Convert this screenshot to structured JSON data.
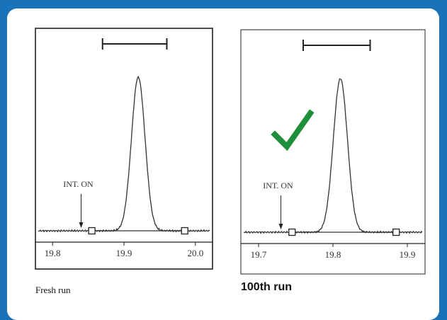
{
  "chart_data": [
    {
      "type": "line",
      "caption": "Fresh run",
      "xlim": [
        19.78,
        20.02
      ],
      "xticks": [
        19.8,
        19.9,
        20.0
      ],
      "xtick_labels": [
        "19.8",
        "19.9",
        "20.0"
      ],
      "peak": {
        "center": 19.92,
        "sigma": 0.0095,
        "relative_height": 0.92
      },
      "annotations": {
        "width_bar": [
          19.87,
          19.96
        ],
        "int_on_label": "INT. ON",
        "int_on_x": 19.84,
        "integration_markers": [
          19.855,
          19.985
        ]
      },
      "checkmark": false
    },
    {
      "type": "line",
      "caption": "100th run",
      "xlim": [
        19.68,
        19.92
      ],
      "xticks": [
        19.7,
        19.8,
        19.9
      ],
      "xtick_labels": [
        "19.7",
        "19.8",
        "19.9"
      ],
      "peak": {
        "center": 19.81,
        "sigma": 0.0095,
        "relative_height": 0.92
      },
      "annotations": {
        "width_bar": [
          19.76,
          19.85
        ],
        "int_on_label": "INT. ON",
        "int_on_x": 19.73,
        "integration_markers": [
          19.745,
          19.885
        ]
      },
      "checkmark": true,
      "check_color": "#1e8f3a"
    }
  ]
}
